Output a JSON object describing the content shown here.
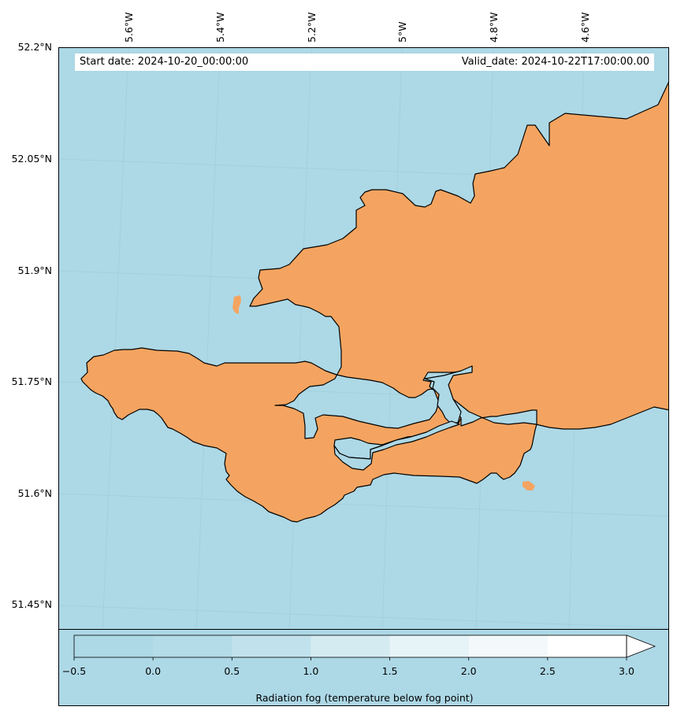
{
  "map": {
    "start_date": "Start date: 2024-10-20_00:00:00",
    "valid_date": "Valid_date: 2024-10-22T17:00:00.00",
    "lat_labels": [
      "52.2°N",
      "52.05°N",
      "51.9°N",
      "51.75°N",
      "51.6°N",
      "51.45°N"
    ],
    "lon_labels": [
      "5.6°W",
      "5.4°W",
      "5.2°W",
      "5°W",
      "4.8°W",
      "4.6°W"
    ],
    "colors": {
      "sea": "#add8e6",
      "land": "#f4a460",
      "coastline": "#000000"
    }
  },
  "colorbar": {
    "ticks": [
      "−0.5",
      "0.0",
      "0.5",
      "1.0",
      "1.5",
      "2.0",
      "2.5",
      "3.0"
    ],
    "label": "Radiation fog (temperature below fog point)",
    "colors": [
      "#add8e6",
      "#b3dbe8",
      "#c1e2ec",
      "#d5ebf2",
      "#e6f3f7",
      "#f3f9fb",
      "#ffffff"
    ],
    "extend": "max"
  }
}
